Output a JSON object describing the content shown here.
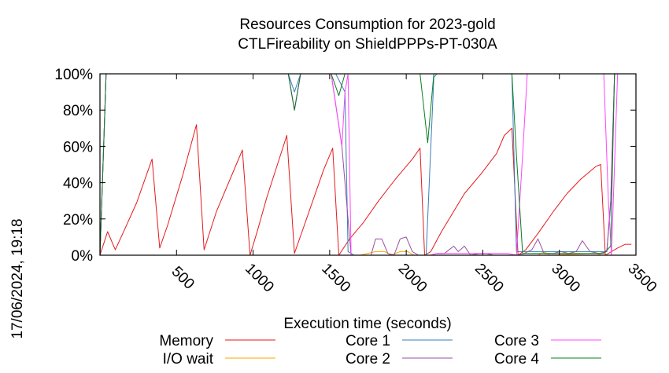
{
  "chart_data": {
    "type": "line",
    "title": "Resources Consumption for 2023-gold",
    "subtitle": "CTLFireability on ShieldPPPs-PT-030A",
    "xlabel": "Execution time (seconds)",
    "ylabel": "",
    "side_label": "17/06/2024, 19:18",
    "xlim": [
      0,
      3500
    ],
    "ylim": [
      0,
      100
    ],
    "x_ticks": [
      500,
      1000,
      1500,
      2000,
      2500,
      3000,
      3500
    ],
    "y_ticks": [
      0,
      20,
      40,
      60,
      80,
      100
    ],
    "y_tick_labels": [
      "0%",
      "20%",
      "40%",
      "60%",
      "80%",
      "100%"
    ],
    "grid": false,
    "legend_position": "bottom",
    "series": [
      {
        "name": "Memory",
        "color": "#e41a1c",
        "points": [
          [
            0,
            0
          ],
          [
            50,
            13
          ],
          [
            100,
            3
          ],
          [
            160,
            14
          ],
          [
            240,
            29
          ],
          [
            340,
            53
          ],
          [
            390,
            4
          ],
          [
            440,
            16
          ],
          [
            540,
            44
          ],
          [
            630,
            72
          ],
          [
            680,
            3
          ],
          [
            760,
            24
          ],
          [
            930,
            58
          ],
          [
            980,
            0
          ],
          [
            1030,
            14
          ],
          [
            1090,
            32
          ],
          [
            1220,
            66
          ],
          [
            1270,
            1
          ],
          [
            1320,
            13
          ],
          [
            1460,
            47
          ],
          [
            1520,
            59
          ],
          [
            1560,
            0
          ],
          [
            1630,
            9
          ],
          [
            1720,
            18
          ],
          [
            1820,
            30
          ],
          [
            1930,
            42
          ],
          [
            2040,
            53
          ],
          [
            2090,
            59
          ],
          [
            2120,
            0
          ],
          [
            2160,
            2
          ],
          [
            2230,
            13
          ],
          [
            2380,
            34
          ],
          [
            2490,
            45
          ],
          [
            2590,
            56
          ],
          [
            2640,
            66
          ],
          [
            2690,
            70
          ],
          [
            2730,
            0
          ],
          [
            2780,
            3
          ],
          [
            2860,
            12
          ],
          [
            2960,
            24
          ],
          [
            3050,
            34
          ],
          [
            3140,
            42
          ],
          [
            3240,
            49
          ],
          [
            3270,
            50
          ],
          [
            3300,
            0
          ],
          [
            3380,
            4
          ],
          [
            3430,
            6
          ],
          [
            3470,
            6
          ]
        ]
      },
      {
        "name": "I/O wait",
        "color": "#ffa500",
        "points": [
          [
            0,
            0
          ],
          [
            1580,
            0
          ],
          [
            1700,
            0
          ],
          [
            1800,
            2
          ],
          [
            1860,
            2
          ],
          [
            1900,
            0
          ],
          [
            1960,
            2
          ],
          [
            2010,
            2
          ],
          [
            2050,
            0
          ],
          [
            2600,
            0
          ],
          [
            2860,
            0
          ],
          [
            2900,
            2
          ],
          [
            2940,
            0
          ],
          [
            3200,
            1
          ],
          [
            3240,
            1
          ],
          [
            3280,
            0
          ],
          [
            3470,
            0
          ]
        ]
      },
      {
        "name": "Core 1",
        "color": "#377eb8",
        "points": [
          [
            0,
            0
          ],
          [
            40,
            100
          ],
          [
            1230,
            100
          ],
          [
            1270,
            90
          ],
          [
            1310,
            100
          ],
          [
            1540,
            100
          ],
          [
            1600,
            90
          ],
          [
            1620,
            2
          ],
          [
            1660,
            0
          ],
          [
            2130,
            0
          ],
          [
            2180,
            98
          ],
          [
            2200,
            100
          ],
          [
            2690,
            100
          ],
          [
            2720,
            2
          ],
          [
            3310,
            2
          ],
          [
            3335,
            28
          ],
          [
            3360,
            100
          ],
          [
            3470,
            100
          ]
        ]
      },
      {
        "name": "Core 2",
        "color": "#984ea3",
        "points": [
          [
            0,
            0
          ],
          [
            40,
            100
          ],
          [
            1230,
            100
          ],
          [
            1270,
            80
          ],
          [
            1310,
            100
          ],
          [
            1510,
            100
          ],
          [
            1580,
            60
          ],
          [
            1640,
            0
          ],
          [
            1720,
            0
          ],
          [
            1770,
            0
          ],
          [
            1800,
            9
          ],
          [
            1840,
            9
          ],
          [
            1880,
            1
          ],
          [
            1920,
            0
          ],
          [
            1960,
            9
          ],
          [
            2000,
            10
          ],
          [
            2040,
            2
          ],
          [
            2080,
            0
          ],
          [
            2130,
            0
          ],
          [
            2160,
            0
          ],
          [
            2200,
            1
          ],
          [
            2250,
            1
          ],
          [
            2310,
            5
          ],
          [
            2340,
            2
          ],
          [
            2380,
            5
          ],
          [
            2420,
            0
          ],
          [
            2480,
            1
          ],
          [
            2520,
            1
          ],
          [
            2570,
            0
          ],
          [
            2660,
            0
          ],
          [
            2720,
            0
          ],
          [
            2770,
            1
          ],
          [
            2820,
            3
          ],
          [
            2860,
            9
          ],
          [
            2900,
            1
          ],
          [
            2960,
            1
          ],
          [
            3010,
            2
          ],
          [
            3060,
            1
          ],
          [
            3110,
            2
          ],
          [
            3150,
            8
          ],
          [
            3200,
            2
          ],
          [
            3260,
            1
          ],
          [
            3310,
            2
          ],
          [
            3335,
            30
          ],
          [
            3360,
            100
          ],
          [
            3470,
            100
          ]
        ]
      },
      {
        "name": "Core 3",
        "color": "#ff44ff",
        "points": [
          [
            0,
            0
          ],
          [
            40,
            100
          ],
          [
            1230,
            100
          ],
          [
            1270,
            80
          ],
          [
            1310,
            100
          ],
          [
            1510,
            100
          ],
          [
            1580,
            60
          ],
          [
            1600,
            90
          ],
          [
            1620,
            100
          ],
          [
            1640,
            0
          ],
          [
            2130,
            0
          ],
          [
            2160,
            0
          ],
          [
            2200,
            1
          ],
          [
            2660,
            1
          ],
          [
            2720,
            0
          ],
          [
            2760,
            55
          ],
          [
            2790,
            100
          ],
          [
            3290,
            100
          ],
          [
            3320,
            30
          ],
          [
            3340,
            0
          ],
          [
            3380,
            100
          ],
          [
            3470,
            100
          ]
        ]
      },
      {
        "name": "Core 4",
        "color": "#0a7d22",
        "points": [
          [
            0,
            0
          ],
          [
            40,
            100
          ],
          [
            1230,
            100
          ],
          [
            1270,
            80
          ],
          [
            1310,
            100
          ],
          [
            1510,
            100
          ],
          [
            1560,
            88
          ],
          [
            1600,
            100
          ],
          [
            2090,
            100
          ],
          [
            2140,
            62
          ],
          [
            2180,
            100
          ],
          [
            2690,
            100
          ],
          [
            2720,
            55
          ],
          [
            2760,
            1
          ],
          [
            3290,
            1
          ],
          [
            3335,
            5
          ],
          [
            3360,
            100
          ],
          [
            3470,
            100
          ]
        ]
      }
    ]
  }
}
